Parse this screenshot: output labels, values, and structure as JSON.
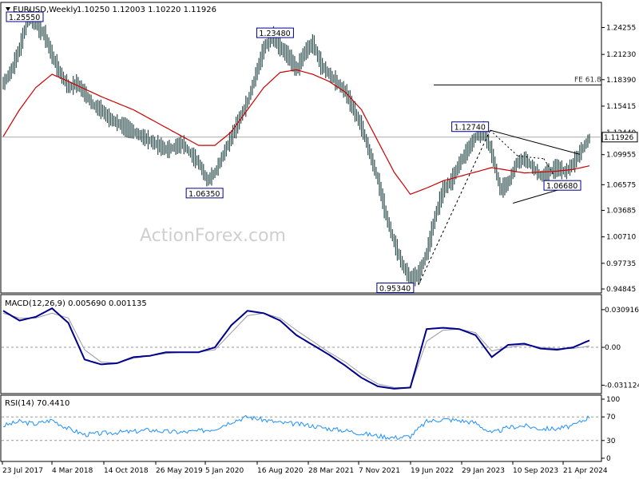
{
  "header": {
    "symbol_label": "EURUSD,Weekly",
    "ohlc_label": "1.10250 1.12003 1.10220 1.11926"
  },
  "watermark": "ActionForex.com",
  "colors": {
    "price_bar": "#2f4f4f",
    "ma_line": "#cc0000",
    "macd_line": "#00008b",
    "signal_line": "#9999aa",
    "rsi_line": "#1e90ff",
    "label_border": "#00008b",
    "grid_dash": "#999999"
  },
  "chart_data": [
    {
      "type": "line",
      "panel": "price",
      "title": "",
      "y_ticks": [
        "1.24255",
        "1.21230",
        "1.18390",
        "1.15415",
        "1.12440",
        "1.09955",
        "1.06575",
        "1.03685",
        "1.00710",
        "0.97735",
        "0.94845"
      ],
      "y_tick_values": [
        1.24255,
        1.2123,
        1.1839,
        1.15415,
        1.1244,
        1.09955,
        1.06575,
        1.03685,
        1.0071,
        0.97735,
        0.94845
      ],
      "ylim": [
        0.94845,
        1.25555
      ],
      "current_price": 1.11926,
      "current_price_label": "1.11926",
      "fe_level": 1.178,
      "fe_label": "FE 61.8",
      "series": [
        {
          "x": [
            0,
            5,
            10,
            15,
            20,
            25,
            30,
            35,
            40,
            45,
            50,
            55,
            60,
            65,
            70,
            75,
            80,
            85,
            90,
            95,
            100,
            105,
            110,
            115,
            120,
            125,
            130,
            135,
            140,
            145,
            150,
            155,
            160,
            165,
            170,
            175,
            180,
            185,
            190,
            195,
            200,
            205,
            210,
            215,
            220,
            225,
            230,
            235,
            240,
            245,
            250,
            255,
            260,
            265,
            270,
            275,
            280,
            285,
            290,
            295,
            300,
            305,
            310,
            315,
            320,
            325,
            330,
            335,
            340,
            345,
            350,
            355,
            360
          ],
          "values": [
            1.18,
            1.195,
            1.22,
            1.255,
            1.245,
            1.235,
            1.21,
            1.19,
            1.175,
            1.18,
            1.168,
            1.155,
            1.15,
            1.14,
            1.135,
            1.13,
            1.125,
            1.12,
            1.115,
            1.11,
            1.105,
            1.108,
            1.112,
            1.1,
            1.09,
            1.07,
            1.08,
            1.1,
            1.12,
            1.14,
            1.16,
            1.19,
            1.22,
            1.234,
            1.22,
            1.21,
            1.195,
            1.215,
            1.225,
            1.2,
            1.19,
            1.18,
            1.17,
            1.15,
            1.13,
            1.1,
            1.07,
            1.03,
            1.0,
            0.975,
            0.96,
            0.965,
            0.99,
            1.03,
            1.06,
            1.07,
            1.09,
            1.105,
            1.12,
            1.127,
            1.1,
            1.06,
            1.068,
            1.09,
            1.095,
            1.085,
            1.075,
            1.08,
            1.085,
            1.08,
            1.09,
            1.105,
            1.119
          ]
        },
        {
          "name": "",
          "x": [
            0,
            10,
            20,
            30,
            40,
            60,
            80,
            100,
            110,
            120,
            130,
            140,
            150,
            160,
            170,
            180,
            190,
            200,
            210,
            220,
            230,
            240,
            250,
            260,
            270,
            280,
            290,
            300,
            310,
            320,
            330,
            340,
            350,
            360
          ],
          "values": [
            1.12,
            1.15,
            1.175,
            1.19,
            1.182,
            1.165,
            1.15,
            1.13,
            1.12,
            1.11,
            1.11,
            1.125,
            1.15,
            1.175,
            1.192,
            1.195,
            1.19,
            1.182,
            1.17,
            1.15,
            1.115,
            1.08,
            1.055,
            1.062,
            1.07,
            1.075,
            1.08,
            1.085,
            1.082,
            1.079,
            1.08,
            1.081,
            1.083,
            1.087
          ]
        }
      ],
      "annotations": [
        {
          "text": "1.25550",
          "x": 3,
          "y": 1.2555
        },
        {
          "text": "1.23480",
          "x": 165,
          "y": 1.2348
        },
        {
          "text": "1.06350",
          "x": 132,
          "y": 1.0635
        },
        {
          "text": "1.12740",
          "x": 299,
          "y": 1.1274
        },
        {
          "text": "1.06680",
          "x": 335,
          "y": 1.0668
        },
        {
          "text": "0.95340",
          "x": 254,
          "y": 0.9534
        }
      ]
    },
    {
      "type": "line",
      "panel": "macd",
      "title": "MACD(12,26,9) 0.005690 0.001135",
      "y_ticks": [
        "0.030916",
        "0.00",
        "-0.031124"
      ],
      "y_tick_values": [
        0.030916,
        0.0,
        -0.031124
      ],
      "ylim": [
        -0.036,
        0.04
      ],
      "series": [
        {
          "x": [
            0,
            10,
            20,
            30,
            40,
            50,
            60,
            70,
            80,
            90,
            100,
            110,
            120,
            130,
            140,
            150,
            160,
            170,
            180,
            190,
            200,
            210,
            220,
            230,
            240,
            250,
            260,
            270,
            280,
            290,
            300,
            310,
            320,
            330,
            340,
            350,
            360
          ],
          "values": [
            0.03,
            0.022,
            0.025,
            0.032,
            0.02,
            -0.01,
            -0.014,
            -0.013,
            -0.008,
            -0.007,
            -0.004,
            -0.004,
            -0.004,
            0.0,
            0.018,
            0.03,
            0.028,
            0.022,
            0.01,
            0.002,
            -0.006,
            -0.015,
            -0.025,
            -0.032,
            -0.034,
            -0.033,
            0.015,
            0.016,
            0.015,
            0.01,
            -0.008,
            0.002,
            0.003,
            -0.001,
            -0.002,
            0.0,
            0.0057
          ]
        },
        {
          "x": [
            0,
            10,
            20,
            30,
            40,
            50,
            60,
            70,
            80,
            90,
            100,
            110,
            120,
            130,
            140,
            150,
            160,
            170,
            180,
            190,
            200,
            210,
            220,
            230,
            240,
            250,
            260,
            270,
            280,
            290,
            300,
            310,
            320,
            330,
            340,
            350,
            360
          ],
          "values": [
            0.028,
            0.024,
            0.024,
            0.028,
            0.024,
            -0.002,
            -0.012,
            -0.013,
            -0.009,
            -0.007,
            -0.005,
            -0.004,
            -0.004,
            -0.002,
            0.012,
            0.026,
            0.028,
            0.024,
            0.014,
            0.005,
            -0.004,
            -0.012,
            -0.022,
            -0.03,
            -0.033,
            -0.033,
            0.005,
            0.014,
            0.015,
            0.012,
            -0.003,
            0.0,
            0.002,
            0.0,
            -0.001,
            -0.001,
            0.0011
          ]
        }
      ]
    },
    {
      "type": "line",
      "panel": "rsi",
      "title": "RSI(14) 70.4410",
      "y_ticks": [
        "100",
        "70",
        "30",
        "0"
      ],
      "y_tick_values": [
        100,
        70,
        30,
        0
      ],
      "ylim": [
        0,
        100
      ],
      "series": [
        {
          "x": [
            0,
            10,
            20,
            30,
            40,
            50,
            60,
            70,
            80,
            90,
            100,
            110,
            120,
            130,
            140,
            150,
            160,
            170,
            180,
            190,
            200,
            210,
            220,
            230,
            240,
            250,
            260,
            270,
            280,
            290,
            300,
            310,
            320,
            330,
            340,
            350,
            360
          ],
          "values": [
            55,
            62,
            58,
            65,
            50,
            40,
            42,
            44,
            45,
            48,
            45,
            44,
            46,
            50,
            62,
            70,
            65,
            60,
            58,
            55,
            50,
            47,
            42,
            38,
            35,
            37,
            62,
            66,
            64,
            60,
            42,
            52,
            55,
            50,
            50,
            55,
            70.4
          ]
        }
      ]
    }
  ],
  "x_axis": {
    "labels": [
      "23 Jul 2017",
      "4 Mar 2018",
      "14 Oct 2018",
      "26 May 2019",
      "5 Jan 2020",
      "16 Aug 2020",
      "28 Mar 2021",
      "7 Nov 2021",
      "19 Jun 2022",
      "29 Jan 2023",
      "10 Sep 2023",
      "21 Apr 2024"
    ]
  }
}
